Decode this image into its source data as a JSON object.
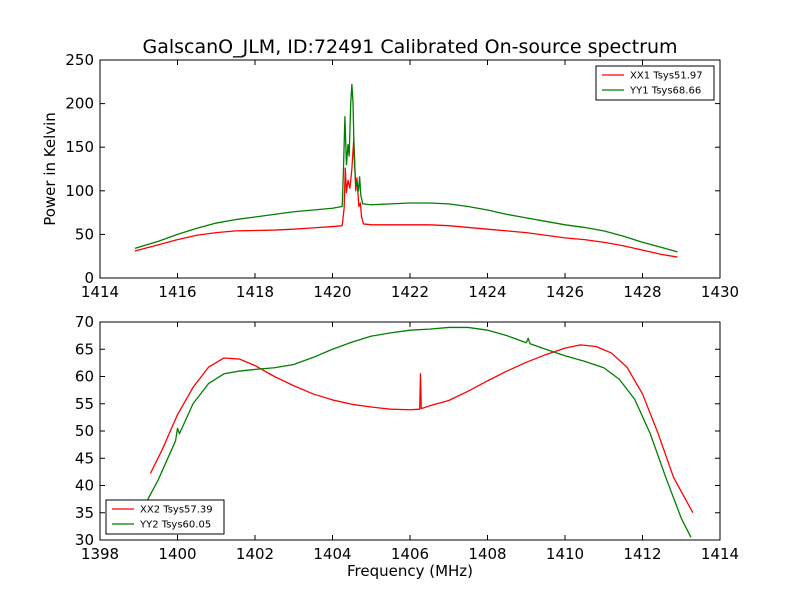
{
  "title": "GalscanO_JLM, ID:72491 Calibrated On-source spectrum",
  "colors": {
    "xx": "#ff0000",
    "yy": "#007f00"
  },
  "chart_data": [
    {
      "type": "line",
      "ylabel": "Power in Kelvin",
      "xlabel": "",
      "xlim": [
        1414,
        1430
      ],
      "ylim": [
        0,
        250
      ],
      "xticks": [
        1414,
        1416,
        1418,
        1420,
        1422,
        1424,
        1426,
        1428,
        1430
      ],
      "yticks": [
        0,
        50,
        100,
        150,
        200,
        250
      ],
      "legend_position": "top-right",
      "grid": false,
      "series": [
        {
          "name": "XX1 Tsys51.97",
          "color": "#ff0000",
          "points": [
            [
              1414.9,
              31
            ],
            [
              1415.5,
              38
            ],
            [
              1416,
              44
            ],
            [
              1416.5,
              49
            ],
            [
              1417,
              52
            ],
            [
              1417.5,
              54
            ],
            [
              1418,
              54.5
            ],
            [
              1418.5,
              55
            ],
            [
              1419,
              56
            ],
            [
              1419.5,
              57.5
            ],
            [
              1420,
              59
            ],
            [
              1420.25,
              60
            ],
            [
              1420.3,
              80
            ],
            [
              1420.33,
              126
            ],
            [
              1420.36,
              98
            ],
            [
              1420.4,
              112
            ],
            [
              1420.45,
              103
            ],
            [
              1420.5,
              125
            ],
            [
              1420.55,
              160
            ],
            [
              1420.6,
              100
            ],
            [
              1420.63,
              115
            ],
            [
              1420.68,
              82
            ],
            [
              1420.72,
              86
            ],
            [
              1420.75,
              70
            ],
            [
              1420.8,
              62
            ],
            [
              1421,
              61
            ],
            [
              1421.5,
              61
            ],
            [
              1422,
              61
            ],
            [
              1422.5,
              61
            ],
            [
              1423,
              60
            ],
            [
              1423.5,
              58
            ],
            [
              1424,
              56
            ],
            [
              1424.5,
              54
            ],
            [
              1425,
              52
            ],
            [
              1425.5,
              49
            ],
            [
              1426,
              46
            ],
            [
              1426.5,
              44
            ],
            [
              1427,
              41
            ],
            [
              1427.5,
              37
            ],
            [
              1428,
              32
            ],
            [
              1428.5,
              27
            ],
            [
              1428.9,
              24
            ]
          ]
        },
        {
          "name": "YY1 Tsys68.66",
          "color": "#007f00",
          "points": [
            [
              1414.9,
              34
            ],
            [
              1415.5,
              42
            ],
            [
              1416,
              50
            ],
            [
              1416.5,
              57
            ],
            [
              1417,
              63
            ],
            [
              1417.5,
              67
            ],
            [
              1418,
              70
            ],
            [
              1418.5,
              73
            ],
            [
              1419,
              76
            ],
            [
              1419.5,
              78
            ],
            [
              1420,
              80
            ],
            [
              1420.25,
              82
            ],
            [
              1420.28,
              120
            ],
            [
              1420.32,
              185
            ],
            [
              1420.36,
              130
            ],
            [
              1420.4,
              153
            ],
            [
              1420.43,
              140
            ],
            [
              1420.47,
              200
            ],
            [
              1420.5,
              222
            ],
            [
              1420.53,
              200
            ],
            [
              1420.56,
              140
            ],
            [
              1420.6,
              105
            ],
            [
              1420.63,
              110
            ],
            [
              1420.67,
              100
            ],
            [
              1420.7,
              116
            ],
            [
              1420.73,
              95
            ],
            [
              1420.78,
              85
            ],
            [
              1421,
              84
            ],
            [
              1421.5,
              85
            ],
            [
              1422,
              86
            ],
            [
              1422.5,
              86
            ],
            [
              1423,
              85
            ],
            [
              1423.5,
              82
            ],
            [
              1424,
              78
            ],
            [
              1424.5,
              73
            ],
            [
              1425,
              69
            ],
            [
              1425.5,
              65
            ],
            [
              1426,
              61
            ],
            [
              1426.5,
              58
            ],
            [
              1427,
              54
            ],
            [
              1427.5,
              48
            ],
            [
              1428,
              41
            ],
            [
              1428.5,
              35
            ],
            [
              1428.9,
              30
            ]
          ]
        }
      ]
    },
    {
      "type": "line",
      "ylabel": "",
      "xlabel": "Frequency (MHz)",
      "xlim": [
        1398,
        1414
      ],
      "ylim": [
        30,
        70
      ],
      "xticks": [
        1398,
        1400,
        1402,
        1404,
        1406,
        1408,
        1410,
        1412,
        1414
      ],
      "yticks": [
        30,
        35,
        40,
        45,
        50,
        55,
        60,
        65,
        70
      ],
      "legend_position": "bottom-left",
      "grid": false,
      "series": [
        {
          "name": "XX2 Tsys57.39",
          "color": "#ff0000",
          "points": [
            [
              1399.3,
              42.2
            ],
            [
              1399.6,
              46.5
            ],
            [
              1400,
              53
            ],
            [
              1400.4,
              58
            ],
            [
              1400.8,
              61.7
            ],
            [
              1401.2,
              63.4
            ],
            [
              1401.6,
              63.2
            ],
            [
              1402,
              62
            ],
            [
              1402.5,
              60
            ],
            [
              1403,
              58.3
            ],
            [
              1403.5,
              56.8
            ],
            [
              1404,
              55.7
            ],
            [
              1404.5,
              54.9
            ],
            [
              1405,
              54.4
            ],
            [
              1405.5,
              54
            ],
            [
              1406,
              53.9
            ],
            [
              1406.25,
              54
            ],
            [
              1406.27,
              60.5
            ],
            [
              1406.29,
              54.1
            ],
            [
              1406.5,
              54.6
            ],
            [
              1407,
              55.6
            ],
            [
              1407.5,
              57.3
            ],
            [
              1408,
              59.2
            ],
            [
              1408.5,
              61
            ],
            [
              1409,
              62.6
            ],
            [
              1409.5,
              64
            ],
            [
              1410,
              65.2
            ],
            [
              1410.4,
              65.8
            ],
            [
              1410.8,
              65.5
            ],
            [
              1411.2,
              64.3
            ],
            [
              1411.6,
              61.7
            ],
            [
              1412,
              56.8
            ],
            [
              1412.4,
              49.6
            ],
            [
              1412.8,
              41.5
            ],
            [
              1413.3,
              35
            ]
          ]
        },
        {
          "name": "YY2 Tsys60.05",
          "color": "#007f00",
          "points": [
            [
              1399.2,
              37
            ],
            [
              1399.5,
              41
            ],
            [
              1399.95,
              48.2
            ],
            [
              1400,
              50.5
            ],
            [
              1400.05,
              49.5
            ],
            [
              1400.4,
              55
            ],
            [
              1400.8,
              58.7
            ],
            [
              1401.2,
              60.5
            ],
            [
              1401.6,
              61
            ],
            [
              1402,
              61.3
            ],
            [
              1402.5,
              61.6
            ],
            [
              1403,
              62.2
            ],
            [
              1403.5,
              63.5
            ],
            [
              1404,
              65
            ],
            [
              1404.5,
              66.3
            ],
            [
              1405,
              67.4
            ],
            [
              1405.5,
              68
            ],
            [
              1406,
              68.5
            ],
            [
              1406.5,
              68.7
            ],
            [
              1407,
              69
            ],
            [
              1407.5,
              69
            ],
            [
              1408,
              68.5
            ],
            [
              1408.5,
              67.5
            ],
            [
              1409,
              66.2
            ],
            [
              1409.05,
              67
            ],
            [
              1409.1,
              66
            ],
            [
              1409.5,
              65
            ],
            [
              1410,
              63.8
            ],
            [
              1410.5,
              62.8
            ],
            [
              1411,
              61.6
            ],
            [
              1411.4,
              59.5
            ],
            [
              1411.8,
              55.8
            ],
            [
              1412.2,
              49.5
            ],
            [
              1412.6,
              41.5
            ],
            [
              1413,
              34
            ],
            [
              1413.25,
              30.5
            ]
          ]
        }
      ]
    }
  ]
}
